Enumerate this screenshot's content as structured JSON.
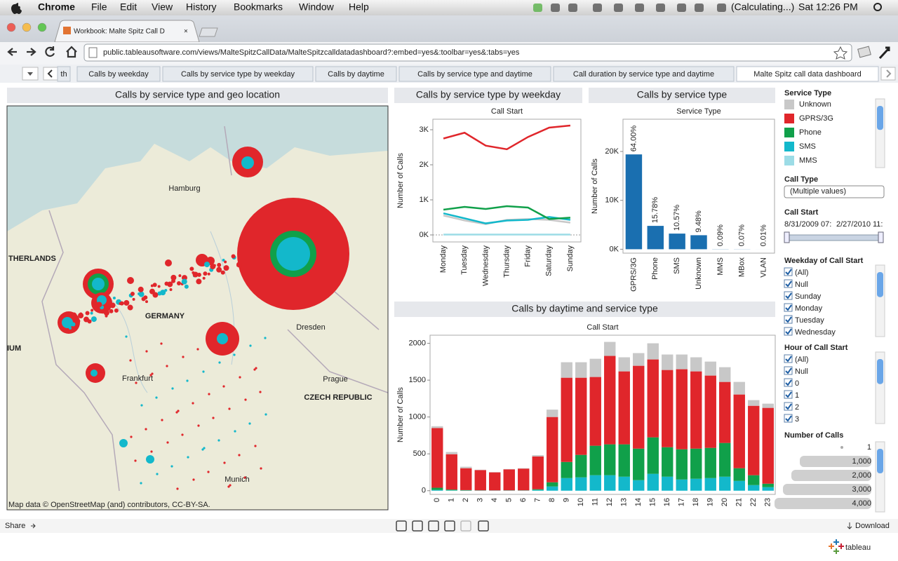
{
  "menubar": {
    "app": "Chrome",
    "menus": [
      "File",
      "Edit",
      "View",
      "History",
      "Bookmarks",
      "Window",
      "Help"
    ],
    "status": "(Calculating...)",
    "clock": "Sat 12:26 PM"
  },
  "browser": {
    "tab_title": "Workbook: Malte Spitz Call D",
    "url": "public.tableausoftware.com/views/MalteSpitzCallData/MalteSpitzcalldatadashboard?:embed=yes&:toolbar=yes&:tabs=yes"
  },
  "sheet_tabs": [
    "th",
    "Calls by weekday",
    "Calls by service type by weekday",
    "Calls by daytime",
    "Calls by service type and daytime",
    "Call duration by service type and daytime",
    "Malte Spitz call data dashboard"
  ],
  "map": {
    "title": "Calls by service type and geo location",
    "labels": [
      "THERLANDS",
      "Hamburg",
      "GERMANY",
      "Dresden",
      "Frankfurt",
      "Prague",
      "CZECH REPUBLIC",
      "Munich",
      "IUM"
    ],
    "attribution": "Map data © OpenStreetMap (and) contributors, CC-BY-SA."
  },
  "chart_data": [
    {
      "type": "line",
      "title": "Calls by service type by weekday",
      "subtitle": "Call Start",
      "y_label": "Number of Calls",
      "categories": [
        "Monday",
        "Tuesday",
        "Wednesday",
        "Thursday",
        "Friday",
        "Saturday",
        "Sunday"
      ],
      "ylim": [
        -200,
        3300
      ],
      "yticks": [
        {
          "value": 0,
          "label": "0K"
        },
        {
          "value": 1000,
          "label": "1K"
        },
        {
          "value": 2000,
          "label": "2K"
        },
        {
          "value": 3000,
          "label": "3K"
        }
      ],
      "series": [
        {
          "name": "MMS",
          "color": "#9cdce6",
          "values": [
            10,
            10,
            10,
            10,
            10,
            10,
            10
          ]
        },
        {
          "name": "Unknown",
          "color": "#c8c8c8",
          "values": [
            554,
            411,
            308,
            431,
            452,
            431,
            349
          ]
        },
        {
          "name": "SMS",
          "color": "#13b8cb",
          "values": [
            616,
            472,
            329,
            411,
            431,
            513,
            431
          ]
        },
        {
          "name": "Phone",
          "color": "#10a04a",
          "values": [
            719,
            800,
            739,
            821,
            780,
            452,
            493
          ]
        },
        {
          "name": "GPRS/3G",
          "color": "#e0262b",
          "values": [
            2750,
            2915,
            2546,
            2444,
            2793,
            3060,
            3121
          ]
        }
      ]
    },
    {
      "type": "bar",
      "title": "Calls by service type",
      "subtitle": "Service Type",
      "y_label": "Number of Calls",
      "categories": [
        "GPRS/3G",
        "Phone",
        "SMS",
        "Unknown",
        "MMS",
        "MBox",
        "VLAN"
      ],
      "values": [
        19400,
        4780,
        3200,
        2870,
        27,
        21,
        3
      ],
      "percent_labels": [
        "64.00%",
        "15.78%",
        "10.57%",
        "9.48%",
        "0.09%",
        "0.07%",
        "0.01%"
      ],
      "color": "#1a6fb0",
      "ylim": [
        -800,
        26600
      ],
      "yticks": [
        {
          "value": 0,
          "label": "0K"
        },
        {
          "value": 10000,
          "label": "10K"
        },
        {
          "value": 20000,
          "label": "20K"
        }
      ]
    },
    {
      "type": "stacked-bar",
      "title": "Calls by daytime and service type",
      "subtitle": "Call Start",
      "y_label": "Number of Calls",
      "categories": [
        "0",
        "1",
        "2",
        "3",
        "4",
        "5",
        "6",
        "7",
        "8",
        "9",
        "10",
        "11",
        "12",
        "13",
        "14",
        "15",
        "16",
        "17",
        "18",
        "19",
        "20",
        "21",
        "22",
        "23"
      ],
      "ylim": [
        -50,
        2110
      ],
      "yticks": [
        0,
        500,
        1000,
        1500,
        2000
      ],
      "series": [
        {
          "name": "SMS",
          "color": "#13b8cb",
          "values": [
            10,
            5,
            3,
            2,
            2,
            2,
            2,
            10,
            57,
            171,
            181,
            210,
            210,
            190,
            143,
            229,
            190,
            152,
            162,
            171,
            190,
            133,
            76,
            48
          ]
        },
        {
          "name": "Phone",
          "color": "#10a04a",
          "values": [
            30,
            10,
            5,
            3,
            2,
            3,
            3,
            10,
            57,
            219,
            305,
            400,
            419,
            439,
            428,
            495,
            400,
            410,
            409,
            410,
            458,
            172,
            134,
            47
          ]
        },
        {
          "name": "GPRS/3G",
          "color": "#e0262b",
          "values": [
            810,
            480,
            297,
            275,
            245,
            285,
            295,
            445,
            886,
            1143,
            1047,
            933,
            1200,
            990,
            1124,
            1057,
            1048,
            1086,
            1048,
            981,
            828,
            1000,
            942,
            1029
          ]
        },
        {
          "name": "Unknown",
          "color": "#c8c8c8",
          "values": [
            25,
            30,
            20,
            5,
            3,
            4,
            5,
            18,
            100,
            210,
            210,
            247,
            190,
            191,
            172,
            219,
            210,
            200,
            191,
            190,
            200,
            171,
            77,
            57
          ]
        }
      ]
    }
  ],
  "filters": {
    "service_type": {
      "title": "Service Type",
      "items": [
        {
          "name": "Unknown",
          "color": "#c8c8c8"
        },
        {
          "name": "GPRS/3G",
          "color": "#e0262b"
        },
        {
          "name": "Phone",
          "color": "#10a04a"
        },
        {
          "name": "SMS",
          "color": "#13b8cb"
        },
        {
          "name": "MMS",
          "color": "#9cdce6"
        }
      ]
    },
    "call_type": {
      "title": "Call Type",
      "value": "(Multiple values)"
    },
    "call_start": {
      "title": "Call Start",
      "from": "8/31/2009 07:",
      "to": "2/27/2010 11:"
    },
    "weekday": {
      "title": "Weekday of Call Start",
      "items": [
        "(All)",
        "Null",
        "Sunday",
        "Monday",
        "Tuesday",
        "Wednesday"
      ]
    },
    "hour": {
      "title": "Hour of Call Start",
      "items": [
        "(All)",
        "Null",
        "0",
        "1",
        "2",
        "3"
      ]
    },
    "size": {
      "title": "Number of Calls",
      "items": [
        "1",
        "1,000",
        "2,000",
        "3,000",
        "4,000"
      ]
    }
  },
  "footer": {
    "share": "Share",
    "download": "Download",
    "brand": "tableau"
  }
}
